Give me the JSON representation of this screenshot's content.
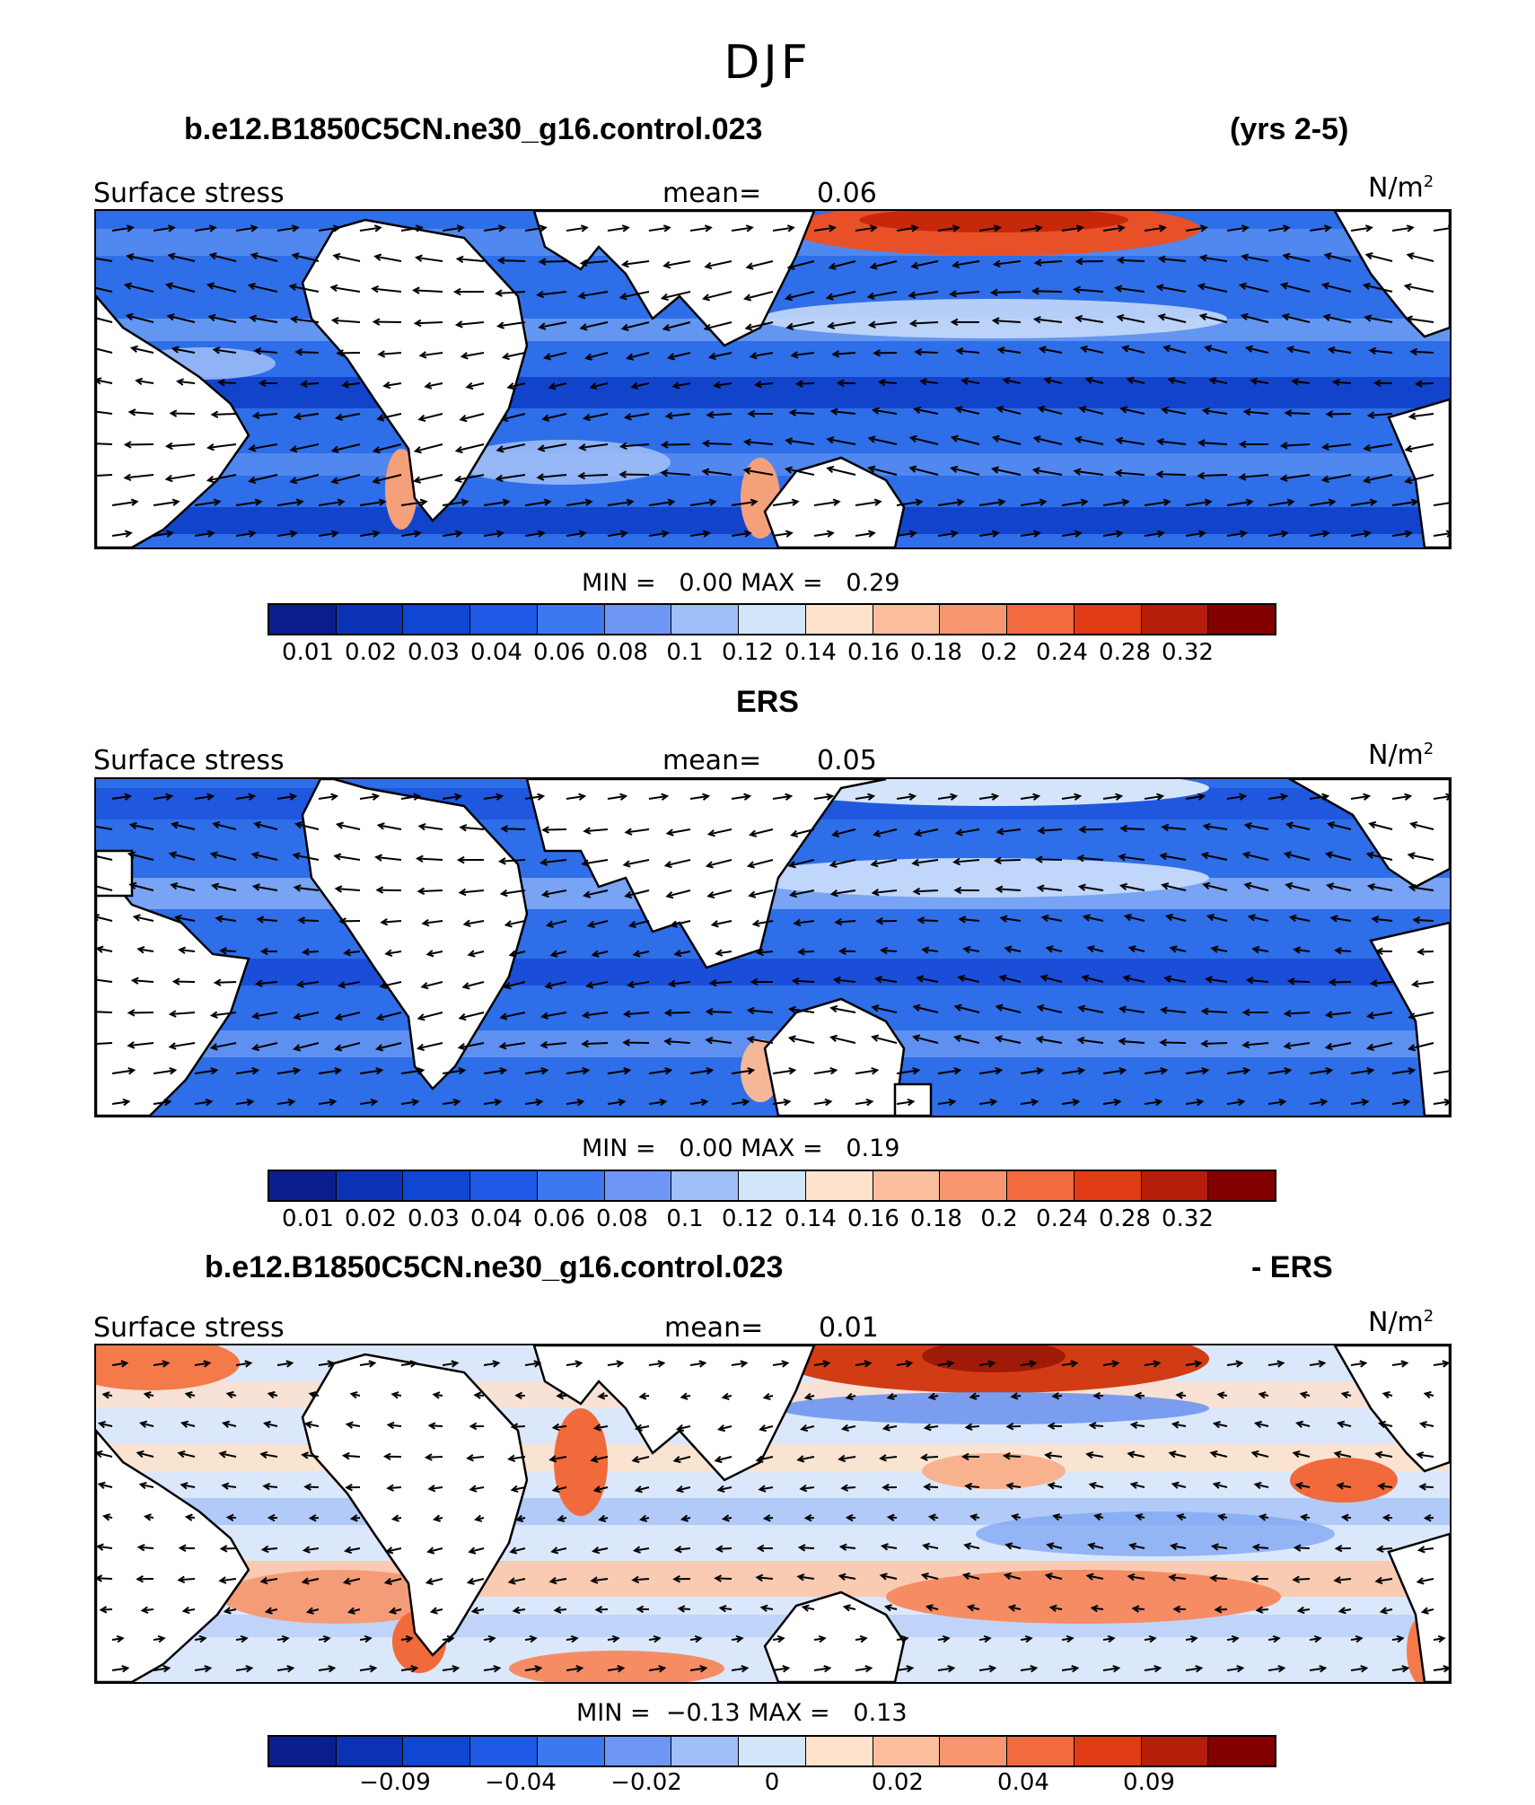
{
  "page_title": "DJF",
  "panels": [
    {
      "header_left": "b.e12.B1850C5CN.ne30_g16.control.023",
      "header_right": "(yrs 2-5)",
      "variable": "Surface stress",
      "mean_label": "mean=",
      "mean_value": "0.06",
      "units_base": "N/m",
      "units_exp": "2",
      "min_label": "MIN =",
      "min_value": "0.00",
      "max_label": "MAX =",
      "max_value": "0.29",
      "scale": "sequential",
      "ticks": [
        "0.01",
        "0.02",
        "0.03",
        "0.04",
        "0.06",
        "0.08",
        "0.1",
        "0.12",
        "0.14",
        "0.16",
        "0.18",
        "0.2",
        "0.24",
        "0.28",
        "0.32"
      ]
    },
    {
      "header_left": "ERS",
      "header_right": "",
      "variable": "Surface stress",
      "mean_label": "mean=",
      "mean_value": "0.05",
      "units_base": "N/m",
      "units_exp": "2",
      "min_label": "MIN =",
      "min_value": "0.00",
      "max_label": "MAX =",
      "max_value": "0.19",
      "scale": "sequential",
      "ticks": [
        "0.01",
        "0.02",
        "0.03",
        "0.04",
        "0.06",
        "0.08",
        "0.1",
        "0.12",
        "0.14",
        "0.16",
        "0.18",
        "0.2",
        "0.24",
        "0.28",
        "0.32"
      ]
    },
    {
      "header_left": "b.e12.B1850C5CN.ne30_g16.control.023",
      "header_right": "- ERS",
      "variable": "Surface stress",
      "mean_label": "mean=",
      "mean_value": "0.01",
      "units_base": "N/m",
      "units_exp": "2",
      "min_label": "MIN =",
      "min_value": "−0.13",
      "max_label": "MAX =",
      "max_value": "0.13",
      "scale": "diverging",
      "ticks": [
        "−0.09",
        "−0.04",
        "−0.02",
        "0",
        "0.02",
        "0.04",
        "0.09"
      ]
    }
  ],
  "colorbar_colors": [
    "#0a1e8c",
    "#0b32b4",
    "#0f46d2",
    "#1e5ae6",
    "#3c78f0",
    "#6e96f5",
    "#a0bef8",
    "#d2e6fa",
    "#fde2cc",
    "#fbbe9f",
    "#f89670",
    "#f26a40",
    "#e03c14",
    "#b41e0a",
    "#820000"
  ]
}
